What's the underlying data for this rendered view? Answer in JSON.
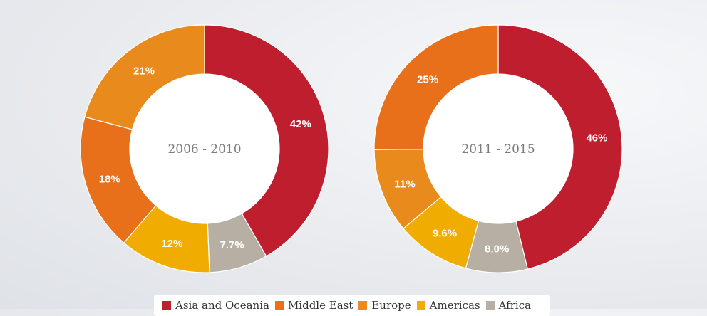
{
  "chart_data": [
    {
      "type": "pie",
      "variant": "donut",
      "center_label": "2006 - 2010",
      "slices": [
        {
          "name": "Asia and Oceania",
          "value": 42,
          "label": "42%"
        },
        {
          "name": "Africa",
          "value": 7.7,
          "label": "7.7%"
        },
        {
          "name": "Americas",
          "value": 12,
          "label": "12%"
        },
        {
          "name": "Middle East",
          "value": 18,
          "label": "18%"
        },
        {
          "name": "Europe",
          "value": 21,
          "label": "21%"
        }
      ]
    },
    {
      "type": "pie",
      "variant": "donut",
      "center_label": "2011 - 2015",
      "slices": [
        {
          "name": "Asia and Oceania",
          "value": 46,
          "label": "46%"
        },
        {
          "name": "Africa",
          "value": 8.0,
          "label": "8.0%"
        },
        {
          "name": "Americas",
          "value": 9.6,
          "label": "9.6%"
        },
        {
          "name": "Europe",
          "value": 11,
          "label": "11%"
        },
        {
          "name": "Middle East",
          "value": 25,
          "label": "25%"
        }
      ]
    }
  ],
  "colors": {
    "Asia and Oceania": "#be1e2d",
    "Middle East": "#e8701a",
    "Europe": "#e88b1c",
    "Americas": "#f0ac00",
    "Africa": "#b8afa4"
  },
  "legend": [
    {
      "name": "Asia and Oceania",
      "color": "#be1e2d"
    },
    {
      "name": "Middle East",
      "color": "#e8701a"
    },
    {
      "name": "Europe",
      "color": "#e88b1c"
    },
    {
      "name": "Americas",
      "color": "#f0ac00"
    },
    {
      "name": "Africa",
      "color": "#b8afa4"
    }
  ]
}
